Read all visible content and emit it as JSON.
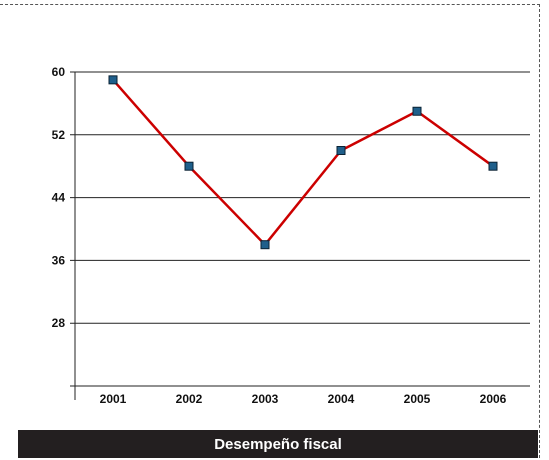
{
  "caption": "Desempeño fiscal",
  "chart_data": {
    "type": "line",
    "title": "",
    "xlabel": "",
    "ylabel": "",
    "categories": [
      "2001",
      "2002",
      "2003",
      "2004",
      "2005",
      "2006"
    ],
    "series": [
      {
        "values": [
          59,
          48,
          38,
          50,
          55,
          48
        ],
        "color": "#cc0000",
        "marker_color": "#1f5f8b"
      }
    ],
    "ylim": [
      20,
      60
    ],
    "yticks": [
      28,
      36,
      44,
      52,
      60
    ],
    "grid": "horizontal"
  }
}
